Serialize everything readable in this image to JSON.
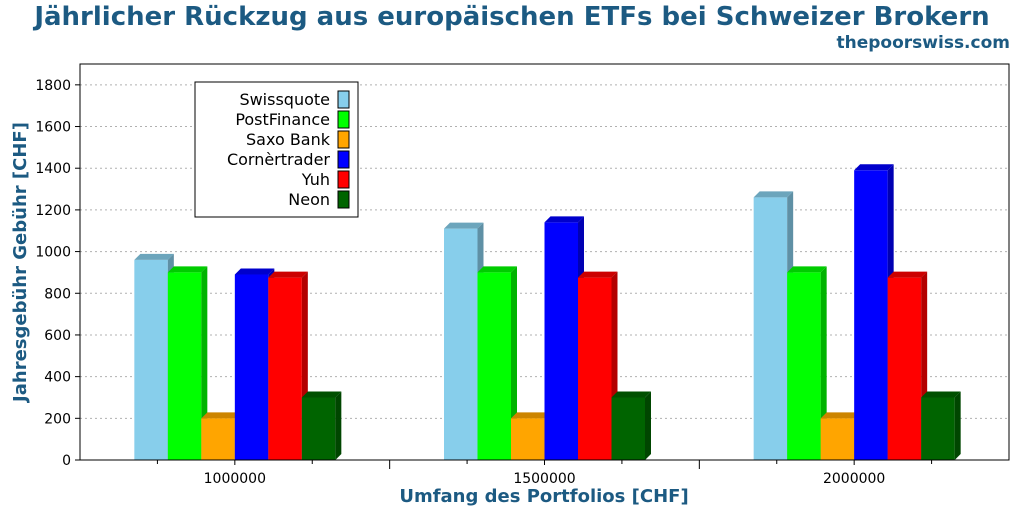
{
  "title": "Jährlicher Rückzug aus europäischen ETFs bei Schweizer Brokern",
  "subtitle": "thepoorswiss.com",
  "chart_data": {
    "type": "bar",
    "categories": [
      "1000000",
      "1500000",
      "2000000"
    ],
    "xlabel": "Umfang des Portfolios [CHF]",
    "ylabel": "Jahresgebühr Gebühr [CHF]",
    "ylim": [
      0,
      1900
    ],
    "yticks": [
      0,
      200,
      400,
      600,
      800,
      1000,
      1200,
      1400,
      1600,
      1800
    ],
    "grid": "horizontal dotted",
    "legend_position": "top-left",
    "series": [
      {
        "name": "Swissquote",
        "color": "#87ceeb",
        "values": [
          960,
          1110,
          1260
        ]
      },
      {
        "name": "PostFinance",
        "color": "#00ff00",
        "values": [
          900,
          900,
          900
        ]
      },
      {
        "name": "Saxo Bank",
        "color": "#ffa500",
        "values": [
          200,
          200,
          200
        ]
      },
      {
        "name": "Cornèrtrader",
        "color": "#0000ff",
        "values": [
          890,
          1140,
          1390
        ]
      },
      {
        "name": "Yuh",
        "color": "#ff0000",
        "values": [
          875,
          875,
          875
        ]
      },
      {
        "name": "Neon",
        "color": "#006400",
        "values": [
          300,
          300,
          300
        ]
      }
    ]
  }
}
